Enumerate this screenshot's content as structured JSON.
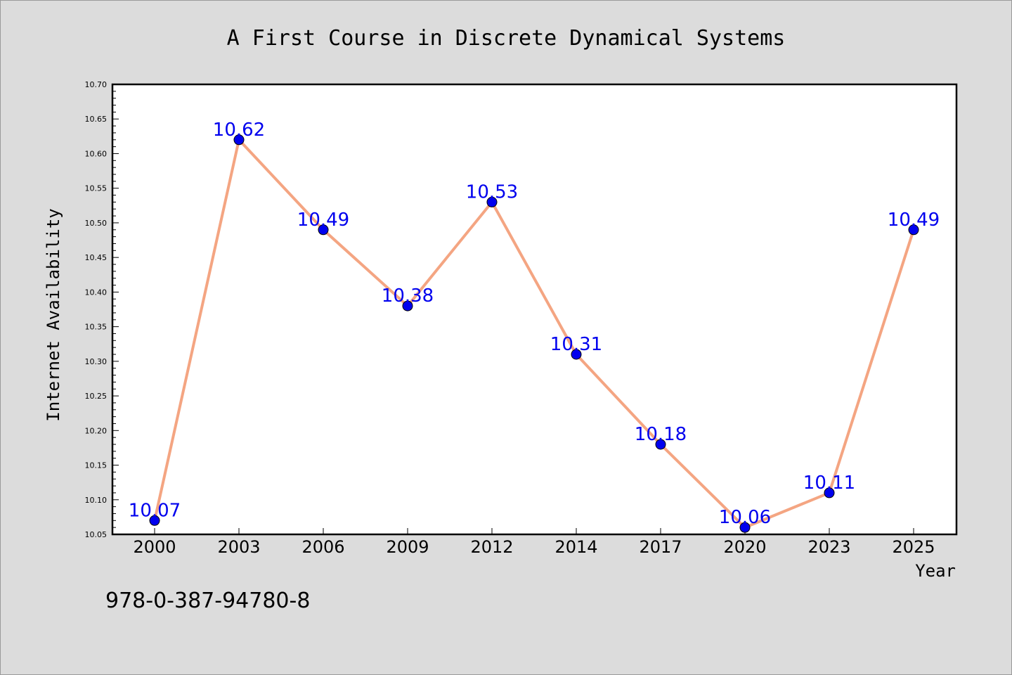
{
  "chart_data": {
    "type": "line",
    "title": "A First Course in Discrete Dynamical Systems",
    "xlabel": "Year",
    "ylabel": "Internet Availability",
    "categories": [
      "2000",
      "2003",
      "2006",
      "2009",
      "2012",
      "2014",
      "2017",
      "2020",
      "2023",
      "2025"
    ],
    "series": [
      {
        "values": [
          10.07,
          10.62,
          10.49,
          10.38,
          10.53,
          10.31,
          10.18,
          10.06,
          10.11,
          10.49
        ],
        "labels": [
          "10.07",
          "10.62",
          "10.49",
          "10.38",
          "10.53",
          "10.31",
          "10.18",
          "10.06",
          "10.11",
          "10.49"
        ]
      }
    ],
    "ylim": [
      10.05,
      10.7
    ],
    "ytick_labels": [
      "10.05",
      "10.10",
      "10.15",
      "10.20",
      "10.25",
      "10.30",
      "10.35",
      "10.40",
      "10.45",
      "10.50",
      "10.55",
      "10.60",
      "10.65",
      "10.70"
    ],
    "grid": false,
    "legend": "none",
    "colors": {
      "line": "#f4a582",
      "marker": "#0000ee",
      "label": "#0000ee",
      "plot_background": "#ffffff",
      "figure_background": "#dcdcdc"
    }
  },
  "caption": "978-0-387-94780-8"
}
